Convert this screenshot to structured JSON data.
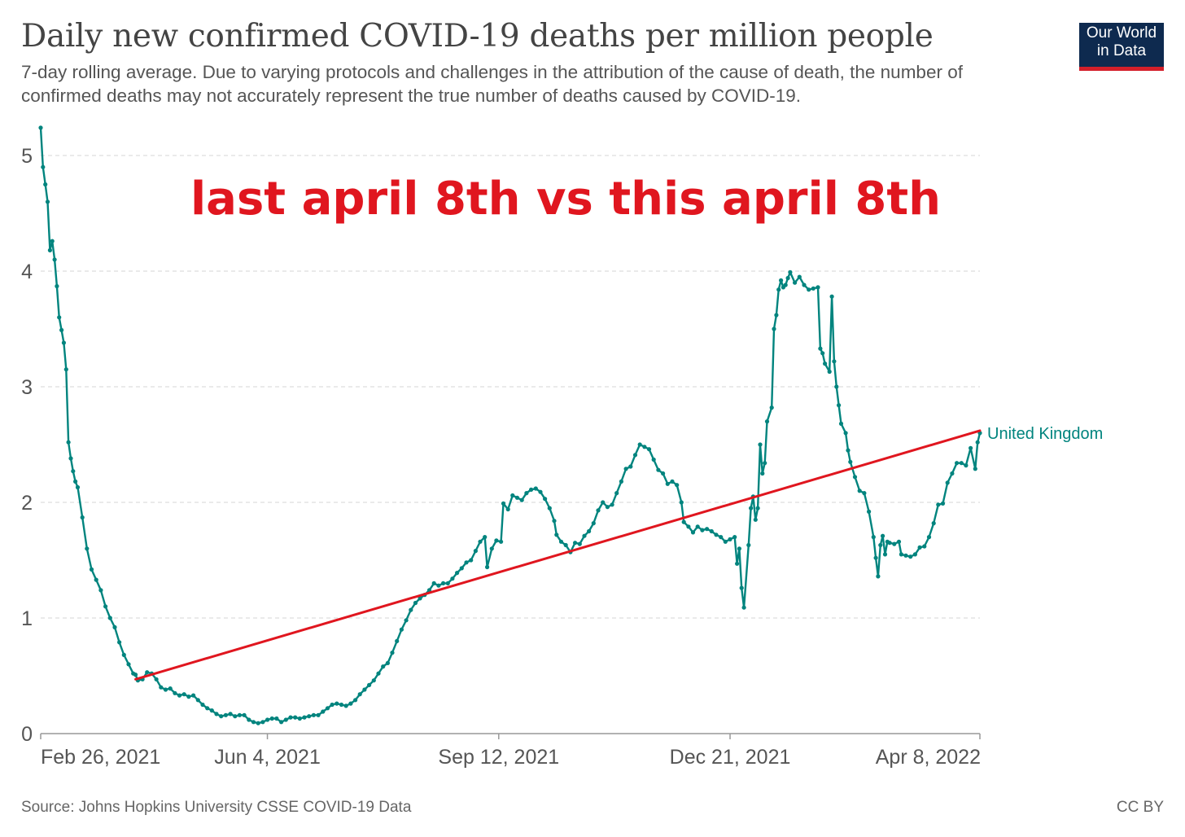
{
  "header": {
    "title": "Daily new confirmed COVID-19 deaths per million people",
    "subtitle": "7-day rolling average. Due to varying protocols and challenges in the attribution of the cause of death, the number of confirmed deaths may not accurately represent the true number of deaths caused by COVID-19.",
    "logo_line1": "Our World",
    "logo_line2": "in Data"
  },
  "footer": {
    "source": "Source: Johns Hopkins University CSSE COVID-19 Data",
    "license": "CC BY"
  },
  "colors": {
    "series": "#00847e",
    "trend": "#e0161f",
    "grid": "#dddddd",
    "logo_bg": "#0e2a4f",
    "logo_accent": "#d31f2a"
  },
  "chart_data": {
    "type": "line",
    "title": "Daily new confirmed COVID-19 deaths per million people",
    "x_start": "2021-02-26",
    "x_end": "2022-04-08",
    "xlabel": "",
    "ylabel": "",
    "ylim": [
      0,
      5.25
    ],
    "yticks": [
      0,
      1,
      2,
      3,
      4,
      5
    ],
    "xticks": [
      {
        "date": "2021-02-26",
        "label": "Feb 26, 2021"
      },
      {
        "date": "2021-06-04",
        "label": "Jun 4, 2021"
      },
      {
        "date": "2021-09-12",
        "label": "Sep 12, 2021"
      },
      {
        "date": "2021-12-21",
        "label": "Dec 21, 2021"
      },
      {
        "date": "2022-04-08",
        "label": "Apr 8, 2022"
      }
    ],
    "grid": true,
    "annotation": "last april 8th vs this april 8th",
    "series": [
      {
        "name": "United Kingdom",
        "points": [
          [
            "2021-02-26",
            5.24
          ],
          [
            "2021-02-27",
            4.9
          ],
          [
            "2021-02-28",
            4.75
          ],
          [
            "2021-03-01",
            4.6
          ],
          [
            "2021-03-02",
            4.18
          ],
          [
            "2021-03-03",
            4.26
          ],
          [
            "2021-03-04",
            4.1
          ],
          [
            "2021-03-05",
            3.87
          ],
          [
            "2021-03-06",
            3.6
          ],
          [
            "2021-03-07",
            3.49
          ],
          [
            "2021-03-08",
            3.38
          ],
          [
            "2021-03-09",
            3.15
          ],
          [
            "2021-03-10",
            2.52
          ],
          [
            "2021-03-11",
            2.38
          ],
          [
            "2021-03-12",
            2.27
          ],
          [
            "2021-03-13",
            2.18
          ],
          [
            "2021-03-14",
            2.13
          ],
          [
            "2021-03-16",
            1.87
          ],
          [
            "2021-03-18",
            1.6
          ],
          [
            "2021-03-20",
            1.42
          ],
          [
            "2021-03-22",
            1.33
          ],
          [
            "2021-03-24",
            1.24
          ],
          [
            "2021-03-26",
            1.1
          ],
          [
            "2021-03-28",
            1.0
          ],
          [
            "2021-03-30",
            0.92
          ],
          [
            "2021-04-01",
            0.79
          ],
          [
            "2021-04-03",
            0.68
          ],
          [
            "2021-04-05",
            0.6
          ],
          [
            "2021-04-07",
            0.52
          ],
          [
            "2021-04-08",
            0.51
          ],
          [
            "2021-04-09",
            0.46
          ],
          [
            "2021-04-11",
            0.47
          ],
          [
            "2021-04-13",
            0.53
          ],
          [
            "2021-04-15",
            0.52
          ],
          [
            "2021-04-17",
            0.47
          ],
          [
            "2021-04-19",
            0.4
          ],
          [
            "2021-04-21",
            0.38
          ],
          [
            "2021-04-23",
            0.39
          ],
          [
            "2021-04-25",
            0.35
          ],
          [
            "2021-04-27",
            0.33
          ],
          [
            "2021-04-29",
            0.34
          ],
          [
            "2021-05-01",
            0.32
          ],
          [
            "2021-05-03",
            0.33
          ],
          [
            "2021-05-05",
            0.29
          ],
          [
            "2021-05-07",
            0.25
          ],
          [
            "2021-05-09",
            0.22
          ],
          [
            "2021-05-11",
            0.2
          ],
          [
            "2021-05-13",
            0.17
          ],
          [
            "2021-05-15",
            0.15
          ],
          [
            "2021-05-17",
            0.16
          ],
          [
            "2021-05-19",
            0.17
          ],
          [
            "2021-05-21",
            0.15
          ],
          [
            "2021-05-23",
            0.16
          ],
          [
            "2021-05-25",
            0.16
          ],
          [
            "2021-05-27",
            0.12
          ],
          [
            "2021-05-29",
            0.1
          ],
          [
            "2021-05-31",
            0.09
          ],
          [
            "2021-06-02",
            0.1
          ],
          [
            "2021-06-04",
            0.12
          ],
          [
            "2021-06-06",
            0.13
          ],
          [
            "2021-06-08",
            0.13
          ],
          [
            "2021-06-10",
            0.1
          ],
          [
            "2021-06-12",
            0.12
          ],
          [
            "2021-06-14",
            0.14
          ],
          [
            "2021-06-16",
            0.14
          ],
          [
            "2021-06-18",
            0.13
          ],
          [
            "2021-06-20",
            0.14
          ],
          [
            "2021-06-22",
            0.15
          ],
          [
            "2021-06-24",
            0.16
          ],
          [
            "2021-06-26",
            0.16
          ],
          [
            "2021-06-28",
            0.19
          ],
          [
            "2021-06-30",
            0.22
          ],
          [
            "2021-07-02",
            0.25
          ],
          [
            "2021-07-04",
            0.26
          ],
          [
            "2021-07-06",
            0.25
          ],
          [
            "2021-07-08",
            0.24
          ],
          [
            "2021-07-10",
            0.26
          ],
          [
            "2021-07-12",
            0.29
          ],
          [
            "2021-07-14",
            0.34
          ],
          [
            "2021-07-16",
            0.38
          ],
          [
            "2021-07-18",
            0.42
          ],
          [
            "2021-07-20",
            0.46
          ],
          [
            "2021-07-22",
            0.52
          ],
          [
            "2021-07-24",
            0.58
          ],
          [
            "2021-07-26",
            0.61
          ],
          [
            "2021-07-28",
            0.7
          ],
          [
            "2021-07-30",
            0.8
          ],
          [
            "2021-08-01",
            0.9
          ],
          [
            "2021-08-03",
            0.98
          ],
          [
            "2021-08-05",
            1.07
          ],
          [
            "2021-08-07",
            1.13
          ],
          [
            "2021-08-09",
            1.17
          ],
          [
            "2021-08-11",
            1.2
          ],
          [
            "2021-08-13",
            1.24
          ],
          [
            "2021-08-15",
            1.3
          ],
          [
            "2021-08-17",
            1.28
          ],
          [
            "2021-08-19",
            1.3
          ],
          [
            "2021-08-21",
            1.3
          ],
          [
            "2021-08-23",
            1.34
          ],
          [
            "2021-08-25",
            1.39
          ],
          [
            "2021-08-27",
            1.43
          ],
          [
            "2021-08-29",
            1.48
          ],
          [
            "2021-08-31",
            1.5
          ],
          [
            "2021-09-02",
            1.58
          ],
          [
            "2021-09-04",
            1.66
          ],
          [
            "2021-09-06",
            1.7
          ],
          [
            "2021-09-07",
            1.44
          ],
          [
            "2021-09-09",
            1.6
          ],
          [
            "2021-09-11",
            1.67
          ],
          [
            "2021-09-13",
            1.66
          ],
          [
            "2021-09-14",
            1.99
          ],
          [
            "2021-09-16",
            1.94
          ],
          [
            "2021-09-18",
            2.06
          ],
          [
            "2021-09-20",
            2.04
          ],
          [
            "2021-09-22",
            2.02
          ],
          [
            "2021-09-24",
            2.08
          ],
          [
            "2021-09-26",
            2.11
          ],
          [
            "2021-09-28",
            2.12
          ],
          [
            "2021-09-30",
            2.09
          ],
          [
            "2021-10-02",
            2.03
          ],
          [
            "2021-10-04",
            1.95
          ],
          [
            "2021-10-06",
            1.84
          ],
          [
            "2021-10-07",
            1.72
          ],
          [
            "2021-10-09",
            1.66
          ],
          [
            "2021-10-11",
            1.63
          ],
          [
            "2021-10-13",
            1.57
          ],
          [
            "2021-10-15",
            1.65
          ],
          [
            "2021-10-17",
            1.64
          ],
          [
            "2021-10-19",
            1.71
          ],
          [
            "2021-10-21",
            1.75
          ],
          [
            "2021-10-23",
            1.82
          ],
          [
            "2021-10-25",
            1.93
          ],
          [
            "2021-10-27",
            2.0
          ],
          [
            "2021-10-29",
            1.96
          ],
          [
            "2021-10-31",
            1.98
          ],
          [
            "2021-11-02",
            2.08
          ],
          [
            "2021-11-04",
            2.18
          ],
          [
            "2021-11-06",
            2.29
          ],
          [
            "2021-11-08",
            2.31
          ],
          [
            "2021-11-10",
            2.41
          ],
          [
            "2021-11-12",
            2.5
          ],
          [
            "2021-11-14",
            2.48
          ],
          [
            "2021-11-16",
            2.46
          ],
          [
            "2021-11-18",
            2.37
          ],
          [
            "2021-11-20",
            2.28
          ],
          [
            "2021-11-22",
            2.25
          ],
          [
            "2021-11-24",
            2.16
          ],
          [
            "2021-11-26",
            2.18
          ],
          [
            "2021-11-28",
            2.15
          ],
          [
            "2021-11-30",
            2.0
          ],
          [
            "2021-12-01",
            1.83
          ],
          [
            "2021-12-03",
            1.79
          ],
          [
            "2021-12-05",
            1.74
          ],
          [
            "2021-12-07",
            1.79
          ],
          [
            "2021-12-09",
            1.76
          ],
          [
            "2021-12-11",
            1.77
          ],
          [
            "2021-12-13",
            1.75
          ],
          [
            "2021-12-15",
            1.72
          ],
          [
            "2021-12-17",
            1.7
          ],
          [
            "2021-12-19",
            1.66
          ],
          [
            "2021-12-21",
            1.68
          ],
          [
            "2021-12-23",
            1.7
          ],
          [
            "2021-12-24",
            1.47
          ],
          [
            "2021-12-25",
            1.6
          ],
          [
            "2021-12-26",
            1.26
          ],
          [
            "2021-12-27",
            1.09
          ],
          [
            "2021-12-29",
            1.63
          ],
          [
            "2021-12-30",
            1.95
          ],
          [
            "2021-12-31",
            2.05
          ],
          [
            "2022-01-01",
            1.85
          ],
          [
            "2022-01-02",
            1.95
          ],
          [
            "2022-01-03",
            2.5
          ],
          [
            "2022-01-04",
            2.25
          ],
          [
            "2022-01-05",
            2.34
          ],
          [
            "2022-01-06",
            2.7
          ],
          [
            "2022-01-08",
            2.82
          ],
          [
            "2022-01-09",
            3.5
          ],
          [
            "2022-01-10",
            3.62
          ],
          [
            "2022-01-11",
            3.84
          ],
          [
            "2022-01-12",
            3.92
          ],
          [
            "2022-01-13",
            3.86
          ],
          [
            "2022-01-14",
            3.88
          ],
          [
            "2022-01-15",
            3.94
          ],
          [
            "2022-01-16",
            3.99
          ],
          [
            "2022-01-18",
            3.9
          ],
          [
            "2022-01-20",
            3.95
          ],
          [
            "2022-01-22",
            3.88
          ],
          [
            "2022-01-24",
            3.84
          ],
          [
            "2022-01-26",
            3.85
          ],
          [
            "2022-01-28",
            3.86
          ],
          [
            "2022-01-29",
            3.33
          ],
          [
            "2022-01-30",
            3.29
          ],
          [
            "2022-01-31",
            3.2
          ],
          [
            "2022-02-02",
            3.13
          ],
          [
            "2022-02-03",
            3.78
          ],
          [
            "2022-02-04",
            3.22
          ],
          [
            "2022-02-05",
            3.0
          ],
          [
            "2022-02-06",
            2.84
          ],
          [
            "2022-02-07",
            2.68
          ],
          [
            "2022-02-09",
            2.6
          ],
          [
            "2022-02-10",
            2.45
          ],
          [
            "2022-02-11",
            2.35
          ],
          [
            "2022-02-13",
            2.22
          ],
          [
            "2022-02-15",
            2.1
          ],
          [
            "2022-02-17",
            2.08
          ],
          [
            "2022-02-19",
            1.92
          ],
          [
            "2022-02-21",
            1.7
          ],
          [
            "2022-02-22",
            1.52
          ],
          [
            "2022-02-23",
            1.36
          ],
          [
            "2022-02-24",
            1.63
          ],
          [
            "2022-02-25",
            1.71
          ],
          [
            "2022-02-26",
            1.55
          ],
          [
            "2022-02-27",
            1.66
          ],
          [
            "2022-02-28",
            1.65
          ],
          [
            "2022-03-02",
            1.64
          ],
          [
            "2022-03-04",
            1.66
          ],
          [
            "2022-03-05",
            1.55
          ],
          [
            "2022-03-07",
            1.54
          ],
          [
            "2022-03-09",
            1.53
          ],
          [
            "2022-03-11",
            1.55
          ],
          [
            "2022-03-13",
            1.61
          ],
          [
            "2022-03-15",
            1.62
          ],
          [
            "2022-03-17",
            1.7
          ],
          [
            "2022-03-19",
            1.82
          ],
          [
            "2022-03-21",
            1.98
          ],
          [
            "2022-03-23",
            1.99
          ],
          [
            "2022-03-25",
            2.17
          ],
          [
            "2022-03-27",
            2.25
          ],
          [
            "2022-03-29",
            2.34
          ],
          [
            "2022-03-31",
            2.34
          ],
          [
            "2022-04-02",
            2.32
          ],
          [
            "2022-04-04",
            2.47
          ],
          [
            "2022-04-06",
            2.29
          ],
          [
            "2022-04-07",
            2.52
          ],
          [
            "2022-04-08",
            2.6
          ]
        ]
      }
    ],
    "trend_line": {
      "from": [
        "2021-04-08",
        0.47
      ],
      "to": [
        "2022-04-08",
        2.62
      ]
    }
  }
}
